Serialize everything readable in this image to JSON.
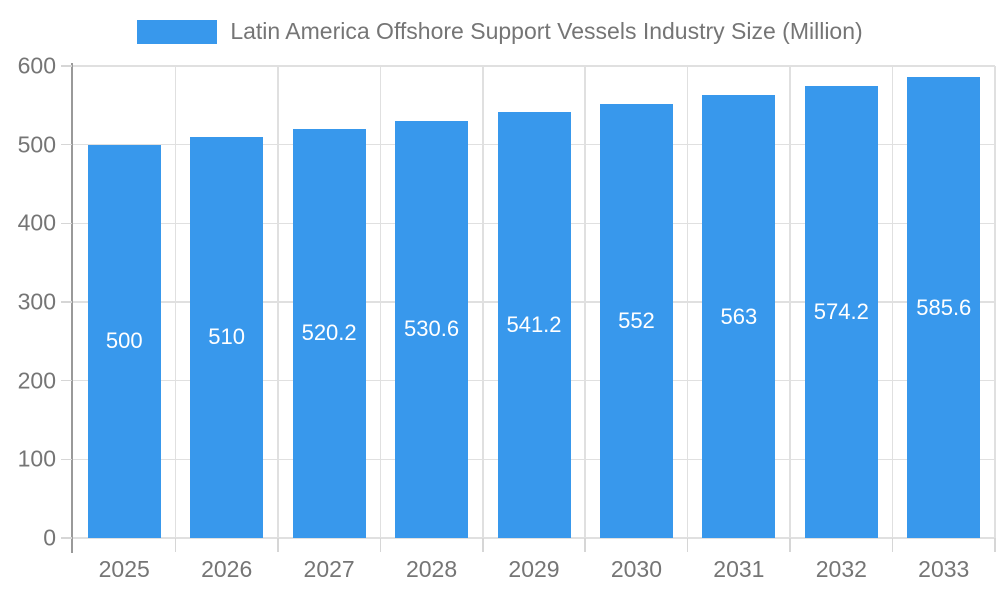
{
  "chart_data": {
    "type": "bar",
    "title": "Latin America Offshore Support Vessels Industry Size (Million)",
    "legend_entries": [
      "Latin America Offshore Support Vessels Industry Size (Million)"
    ],
    "legend_position": "top",
    "categories": [
      "2025",
      "2026",
      "2027",
      "2028",
      "2029",
      "2030",
      "2031",
      "2032",
      "2033"
    ],
    "series": [
      {
        "name": "Latin America Offshore Support Vessels Industry Size (Million)",
        "values": [
          500,
          510,
          520.2,
          530.6,
          541.2,
          552,
          563,
          574.2,
          585.6
        ],
        "labels": [
          "500",
          "510",
          "520.2",
          "530.6",
          "541.2",
          "552",
          "563",
          "574.2",
          "585.6"
        ]
      }
    ],
    "xlabel": "",
    "ylabel": "",
    "ylim": [
      0,
      600
    ],
    "y_ticks": [
      0,
      100,
      200,
      300,
      400,
      500,
      600
    ],
    "grid": true,
    "bar_label_position": "inside-middle",
    "colors": {
      "bar": "#3898EC",
      "bar_label": "#FFFFFF",
      "axis_line": "#999999",
      "gridline": "#E0E0E0",
      "tick_mark": "#D6D6D6",
      "tick_text": "#757575",
      "legend_text": "#757575",
      "background": "#FFFFFF"
    }
  }
}
